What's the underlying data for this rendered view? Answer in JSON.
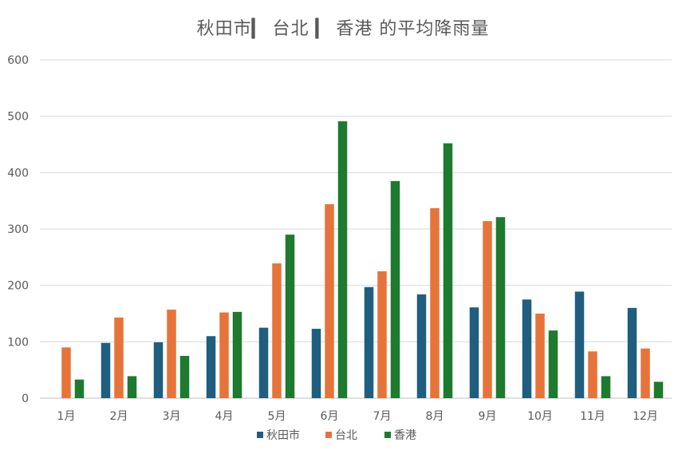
{
  "chart_data": {
    "type": "bar",
    "title": "秋田市▎ 台北 ▎ 香港 的平均降雨量",
    "xlabel": "",
    "ylabel": "",
    "ylim": [
      0,
      600
    ],
    "yticks": [
      0,
      100,
      200,
      300,
      400,
      500,
      600
    ],
    "grid": true,
    "legend_position": "bottom",
    "categories": [
      "1月",
      "2月",
      "3月",
      "4月",
      "5月",
      "6月",
      "7月",
      "8月",
      "9月",
      "10月",
      "11月",
      "12月"
    ],
    "series": [
      {
        "name": "秋田市",
        "color": "#1f5e7f",
        "values": [
          0,
          98,
          99,
          110,
          125,
          123,
          197,
          184,
          161,
          175,
          189,
          160
        ]
      },
      {
        "name": "台北",
        "color": "#e6743a",
        "values": [
          90,
          143,
          157,
          152,
          239,
          344,
          225,
          337,
          314,
          150,
          83,
          88
        ]
      },
      {
        "name": "香港",
        "color": "#1e7a2e",
        "values": [
          33,
          39,
          75,
          153,
          290,
          491,
          385,
          452,
          321,
          120,
          39,
          29
        ]
      }
    ]
  }
}
